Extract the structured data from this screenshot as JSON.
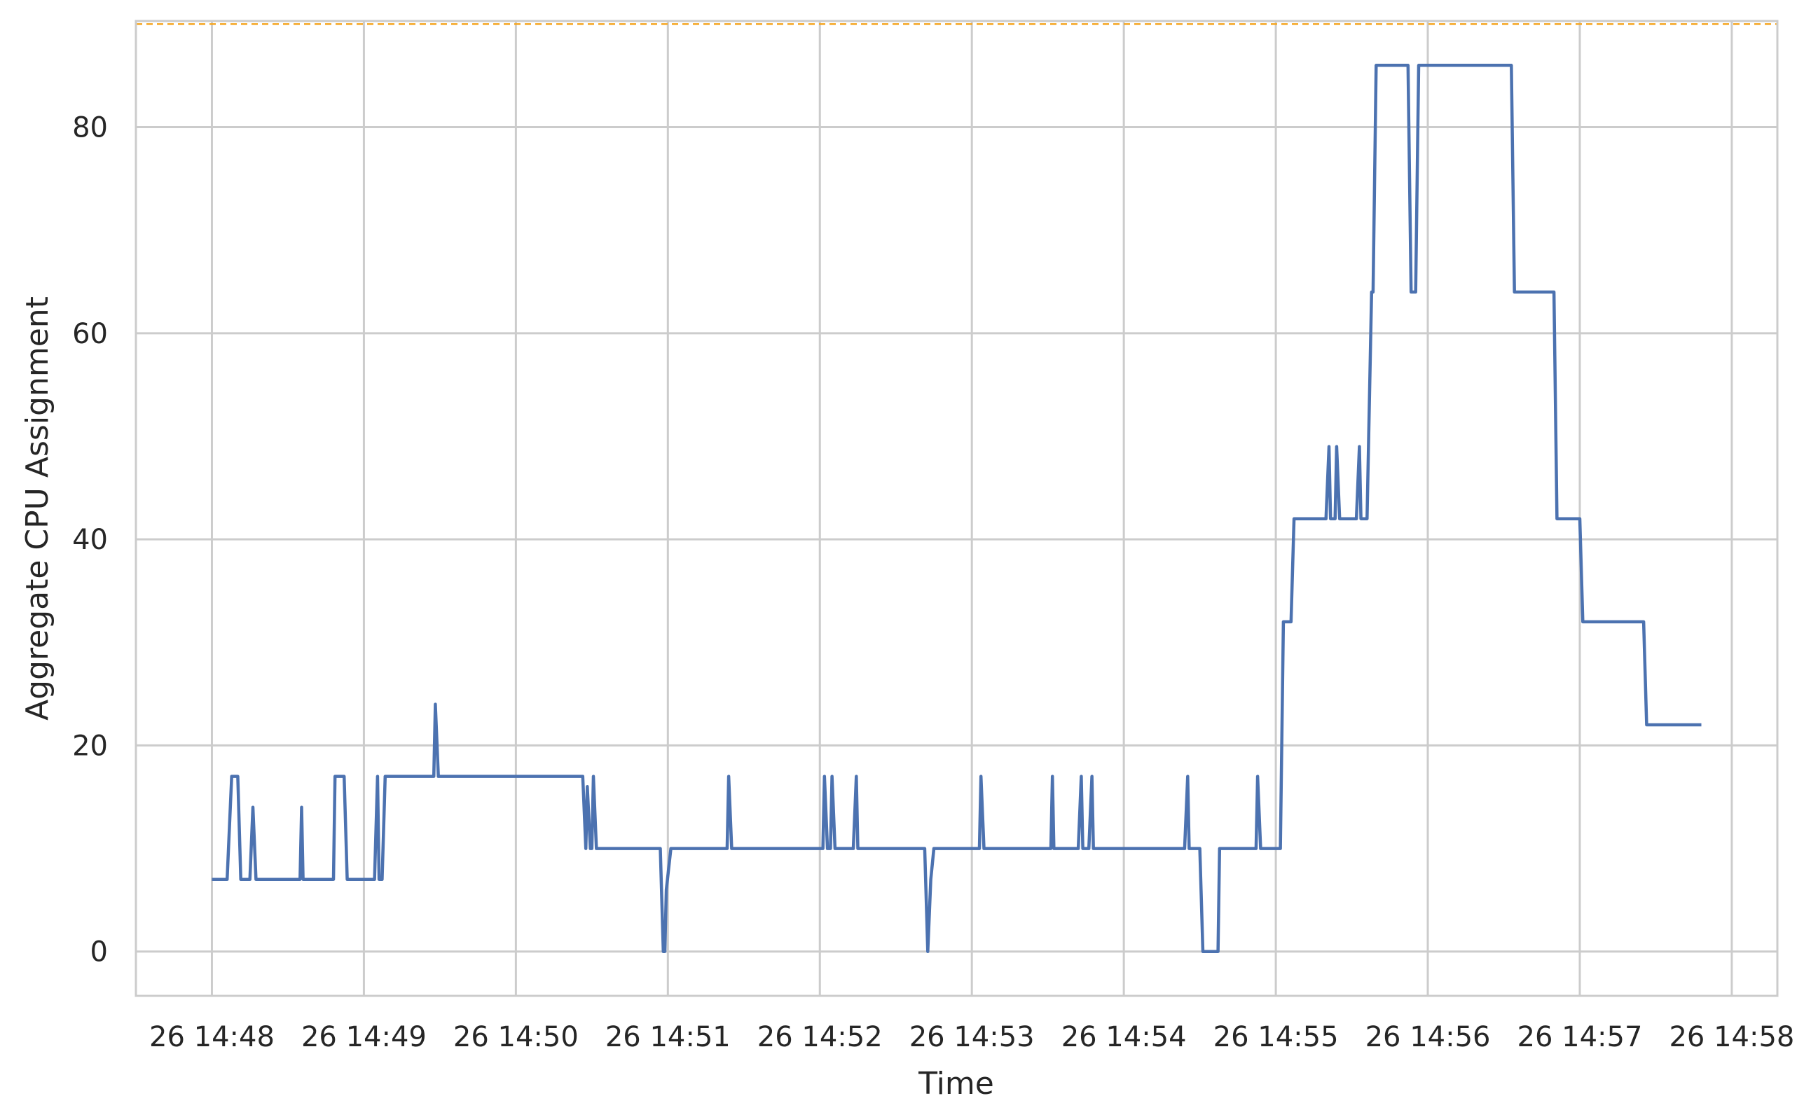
{
  "chart_data": {
    "type": "line",
    "title": "",
    "xlabel": "Time",
    "ylabel": "Aggregate CPU Assignment",
    "x_tick_labels": [
      "26 14:48",
      "26 14:49",
      "26 14:50",
      "26 14:51",
      "26 14:52",
      "26 14:53",
      "26 14:54",
      "26 14:55",
      "26 14:56",
      "26 14:57",
      "26 14:58"
    ],
    "x_unit": "minutes past 14:00 on day 26",
    "xlim": [
      47.5,
      58.3
    ],
    "ylim": [
      -4.3,
      90.3
    ],
    "y_ticks": [
      0,
      20,
      40,
      60,
      80
    ],
    "grid": true,
    "legend": "none",
    "reference_line": {
      "y": 90,
      "color": "#f5a623",
      "style": "dashed"
    },
    "series": [
      {
        "color": "#4c72b0",
        "points": [
          [
            48.0,
            7
          ],
          [
            48.1,
            7
          ],
          [
            48.13,
            17
          ],
          [
            48.17,
            17
          ],
          [
            48.19,
            7
          ],
          [
            48.25,
            7
          ],
          [
            48.27,
            14
          ],
          [
            48.29,
            7
          ],
          [
            48.58,
            7
          ],
          [
            48.59,
            14
          ],
          [
            48.6,
            7
          ],
          [
            48.8,
            7
          ],
          [
            48.81,
            17
          ],
          [
            48.87,
            17
          ],
          [
            48.89,
            7
          ],
          [
            49.07,
            7
          ],
          [
            49.09,
            17
          ],
          [
            49.1,
            7
          ],
          [
            49.12,
            7
          ],
          [
            49.14,
            17
          ],
          [
            49.46,
            17
          ],
          [
            49.47,
            24
          ],
          [
            49.49,
            17
          ],
          [
            50.44,
            17
          ],
          [
            50.46,
            10
          ],
          [
            50.47,
            16
          ],
          [
            50.49,
            10
          ],
          [
            50.5,
            10
          ],
          [
            50.51,
            17
          ],
          [
            50.53,
            10
          ],
          [
            50.95,
            10
          ],
          [
            50.97,
            0
          ],
          [
            50.98,
            0
          ],
          [
            50.99,
            6
          ],
          [
            51.02,
            10
          ],
          [
            51.39,
            10
          ],
          [
            51.4,
            17
          ],
          [
            51.42,
            10
          ],
          [
            52.02,
            10
          ],
          [
            52.03,
            17
          ],
          [
            52.05,
            10
          ],
          [
            52.07,
            10
          ],
          [
            52.08,
            17
          ],
          [
            52.1,
            10
          ],
          [
            52.22,
            10
          ],
          [
            52.24,
            17
          ],
          [
            52.25,
            10
          ],
          [
            52.69,
            10
          ],
          [
            52.71,
            0
          ],
          [
            52.73,
            7
          ],
          [
            52.75,
            10
          ],
          [
            53.05,
            10
          ],
          [
            53.06,
            17
          ],
          [
            53.08,
            10
          ],
          [
            53.52,
            10
          ],
          [
            53.53,
            17
          ],
          [
            53.54,
            10
          ],
          [
            53.7,
            10
          ],
          [
            53.72,
            17
          ],
          [
            53.73,
            10
          ],
          [
            53.77,
            10
          ],
          [
            53.79,
            17
          ],
          [
            53.8,
            10
          ],
          [
            54.4,
            10
          ],
          [
            54.42,
            17
          ],
          [
            54.43,
            10
          ],
          [
            54.5,
            10
          ],
          [
            54.52,
            0
          ],
          [
            54.62,
            0
          ],
          [
            54.63,
            10
          ],
          [
            54.87,
            10
          ],
          [
            54.88,
            17
          ],
          [
            54.9,
            10
          ],
          [
            55.03,
            10
          ],
          [
            55.05,
            32
          ],
          [
            55.1,
            32
          ],
          [
            55.12,
            42
          ],
          [
            55.33,
            42
          ],
          [
            55.35,
            49
          ],
          [
            55.36,
            42
          ],
          [
            55.39,
            42
          ],
          [
            55.4,
            49
          ],
          [
            55.42,
            42
          ],
          [
            55.53,
            42
          ],
          [
            55.55,
            49
          ],
          [
            55.56,
            42
          ],
          [
            55.6,
            42
          ],
          [
            55.63,
            64
          ],
          [
            55.64,
            64
          ],
          [
            55.66,
            86
          ],
          [
            55.87,
            86
          ],
          [
            55.89,
            64
          ],
          [
            55.92,
            64
          ],
          [
            55.94,
            86
          ],
          [
            56.55,
            86
          ],
          [
            56.57,
            64
          ],
          [
            56.83,
            64
          ],
          [
            56.85,
            42
          ],
          [
            57.0,
            42
          ],
          [
            57.02,
            32
          ],
          [
            57.42,
            32
          ],
          [
            57.44,
            22
          ],
          [
            57.8,
            22
          ]
        ]
      }
    ]
  }
}
